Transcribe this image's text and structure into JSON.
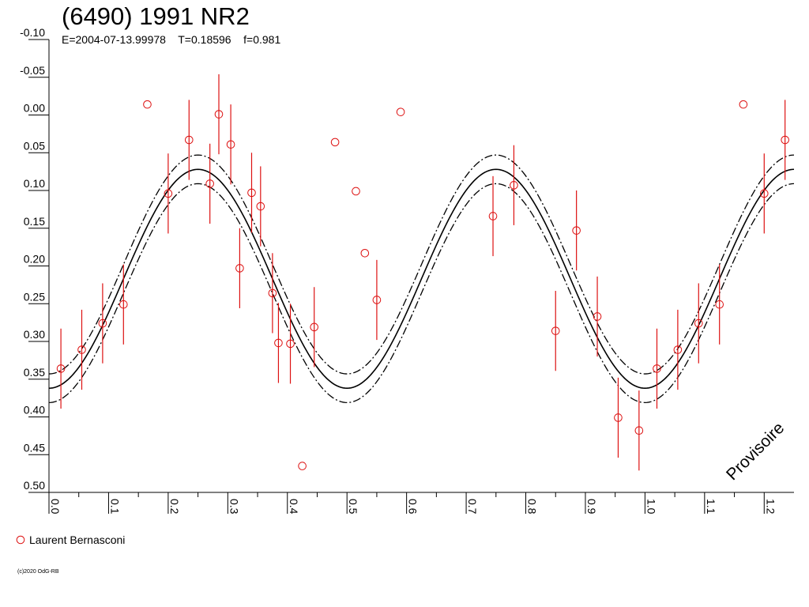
{
  "title": "(6490) 1991 NR2",
  "subtitle": "E=2004-07-13.99978    T=0.18596    f=0.981",
  "watermark": "Provisoire",
  "copyright": "(c)2020 OdG-RB",
  "legend": {
    "label": "Laurent Bernasconi",
    "marker_color": "#dd1111"
  },
  "colors": {
    "points": "#dd1111",
    "error_bars": "#dd1111",
    "curve": "#000000",
    "axes": "#000000"
  },
  "chart_data": {
    "type": "scatter",
    "title": "(6490) 1991 NR2",
    "xlabel": "",
    "ylabel": "",
    "xlim": [
      0.0,
      1.25
    ],
    "ylim": [
      -0.1,
      0.5
    ],
    "y_inverted": true,
    "x_ticks": [
      "0.0",
      "0.1",
      "0.2",
      "0.3",
      "0.4",
      "0.5",
      "0.6",
      "0.7",
      "0.8",
      "0.9",
      "1.0",
      "1.1",
      "1.2"
    ],
    "y_ticks": [
      "-0.10",
      "-0.05",
      "0.00",
      "0.05",
      "0.10",
      "0.15",
      "0.20",
      "0.25",
      "0.30",
      "0.35",
      "0.40",
      "0.45",
      "0.50"
    ],
    "grid": false,
    "legend_position": "bottom-left",
    "fit_curve": {
      "mean": 0.217,
      "amplitude": 0.145,
      "band_offset": 0.019,
      "peak_phase": 0.25
    },
    "series": [
      {
        "name": "Laurent Bernasconi",
        "points": [
          {
            "x": 0.02,
            "y": 0.336,
            "err": 0.053
          },
          {
            "x": 0.055,
            "y": 0.311,
            "err": 0.053
          },
          {
            "x": 0.09,
            "y": 0.276,
            "err": 0.053
          },
          {
            "x": 0.125,
            "y": 0.251,
            "err": 0.053
          },
          {
            "x": 0.165,
            "y": -0.014,
            "err": 0
          },
          {
            "x": 0.2,
            "y": 0.104,
            "err": 0.053
          },
          {
            "x": 0.235,
            "y": 0.033,
            "err": 0.053
          },
          {
            "x": 0.27,
            "y": 0.091,
            "err": 0.053
          },
          {
            "x": 0.285,
            "y": -0.001,
            "err": 0.053
          },
          {
            "x": 0.305,
            "y": 0.039,
            "err": 0.053
          },
          {
            "x": 0.32,
            "y": 0.203,
            "err": 0.053
          },
          {
            "x": 0.34,
            "y": 0.103,
            "err": 0.053
          },
          {
            "x": 0.355,
            "y": 0.121,
            "err": 0.053
          },
          {
            "x": 0.375,
            "y": 0.236,
            "err": 0.053
          },
          {
            "x": 0.385,
            "y": 0.302,
            "err": 0.053
          },
          {
            "x": 0.405,
            "y": 0.303,
            "err": 0.053
          },
          {
            "x": 0.425,
            "y": 0.465,
            "err": 0
          },
          {
            "x": 0.445,
            "y": 0.281,
            "err": 0.053
          },
          {
            "x": 0.48,
            "y": 0.036,
            "err": 0
          },
          {
            "x": 0.515,
            "y": 0.101,
            "err": 0
          },
          {
            "x": 0.53,
            "y": 0.183,
            "err": 0
          },
          {
            "x": 0.55,
            "y": 0.245,
            "err": 0.053
          },
          {
            "x": 0.59,
            "y": -0.004,
            "err": 0
          },
          {
            "x": 0.745,
            "y": 0.134,
            "err": 0.053
          },
          {
            "x": 0.78,
            "y": 0.093,
            "err": 0.053
          },
          {
            "x": 0.85,
            "y": 0.286,
            "err": 0.053
          },
          {
            "x": 0.885,
            "y": 0.153,
            "err": 0.053
          },
          {
            "x": 0.92,
            "y": 0.267,
            "err": 0.053
          },
          {
            "x": 0.955,
            "y": 0.401,
            "err": 0.053
          },
          {
            "x": 0.99,
            "y": 0.418,
            "err": 0.053
          },
          {
            "x": 1.02,
            "y": 0.336,
            "err": 0.053
          },
          {
            "x": 1.055,
            "y": 0.311,
            "err": 0.053
          },
          {
            "x": 1.09,
            "y": 0.276,
            "err": 0.053
          },
          {
            "x": 1.125,
            "y": 0.251,
            "err": 0.053
          },
          {
            "x": 1.165,
            "y": -0.014,
            "err": 0
          },
          {
            "x": 1.2,
            "y": 0.104,
            "err": 0.053
          },
          {
            "x": 1.235,
            "y": 0.033,
            "err": 0.053
          }
        ]
      }
    ]
  }
}
